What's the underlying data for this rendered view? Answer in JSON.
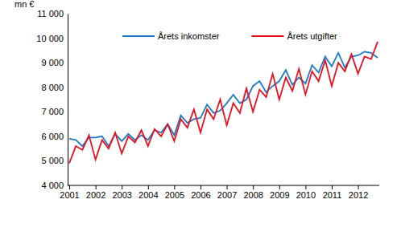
{
  "chart_data": {
    "type": "line",
    "y_label": "mn €",
    "categories": [
      "2001",
      null,
      null,
      null,
      "2002",
      null,
      null,
      null,
      "2003",
      null,
      null,
      null,
      "2004",
      null,
      null,
      null,
      "2005",
      null,
      null,
      null,
      "2006",
      null,
      null,
      null,
      "2007",
      null,
      null,
      null,
      "2008",
      null,
      null,
      null,
      "2009",
      null,
      null,
      null,
      "2010",
      null,
      null,
      null,
      "2011",
      null,
      null,
      null,
      "2012",
      null,
      null,
      null
    ],
    "series": [
      {
        "name": "Årets inkomster",
        "color": "#1f78c8",
        "values": [
          5900,
          5850,
          5600,
          5950,
          5950,
          6000,
          5600,
          6100,
          5800,
          6100,
          5850,
          6050,
          5850,
          6250,
          6150,
          6500,
          6050,
          6850,
          6550,
          6700,
          6750,
          7300,
          6950,
          7050,
          7350,
          7700,
          7350,
          7500,
          8050,
          8250,
          7800,
          8050,
          8250,
          8700,
          8100,
          8400,
          8150,
          8900,
          8600,
          9250,
          8850,
          9400,
          8800,
          9250,
          9300,
          9450,
          9400,
          9200
        ]
      },
      {
        "name": "Årets utgifter",
        "color": "#e8101e",
        "values": [
          4900,
          5600,
          5450,
          6050,
          5050,
          5850,
          5500,
          6150,
          5300,
          6000,
          5750,
          6250,
          5600,
          6300,
          6000,
          6500,
          5800,
          6700,
          6350,
          7100,
          6150,
          7100,
          6700,
          7500,
          6450,
          7350,
          6950,
          7950,
          7000,
          7900,
          7600,
          8550,
          7500,
          8400,
          7850,
          8750,
          7700,
          8650,
          8250,
          9100,
          8050,
          9000,
          8650,
          9350,
          8550,
          9250,
          9150,
          9850
        ]
      }
    ],
    "ylim": [
      4000,
      11000
    ],
    "yticks": [
      {
        "value": 4000,
        "label": "4 000"
      },
      {
        "value": 5000,
        "label": "5 000"
      },
      {
        "value": 6000,
        "label": "6 000"
      },
      {
        "value": 7000,
        "label": "7 000"
      },
      {
        "value": 8000,
        "label": "8 000"
      },
      {
        "value": 9000,
        "label": "9 000"
      },
      {
        "value": 10000,
        "label": "10 000"
      },
      {
        "value": 11000,
        "label": "11 000"
      }
    ],
    "grid": false,
    "legend": "top"
  }
}
